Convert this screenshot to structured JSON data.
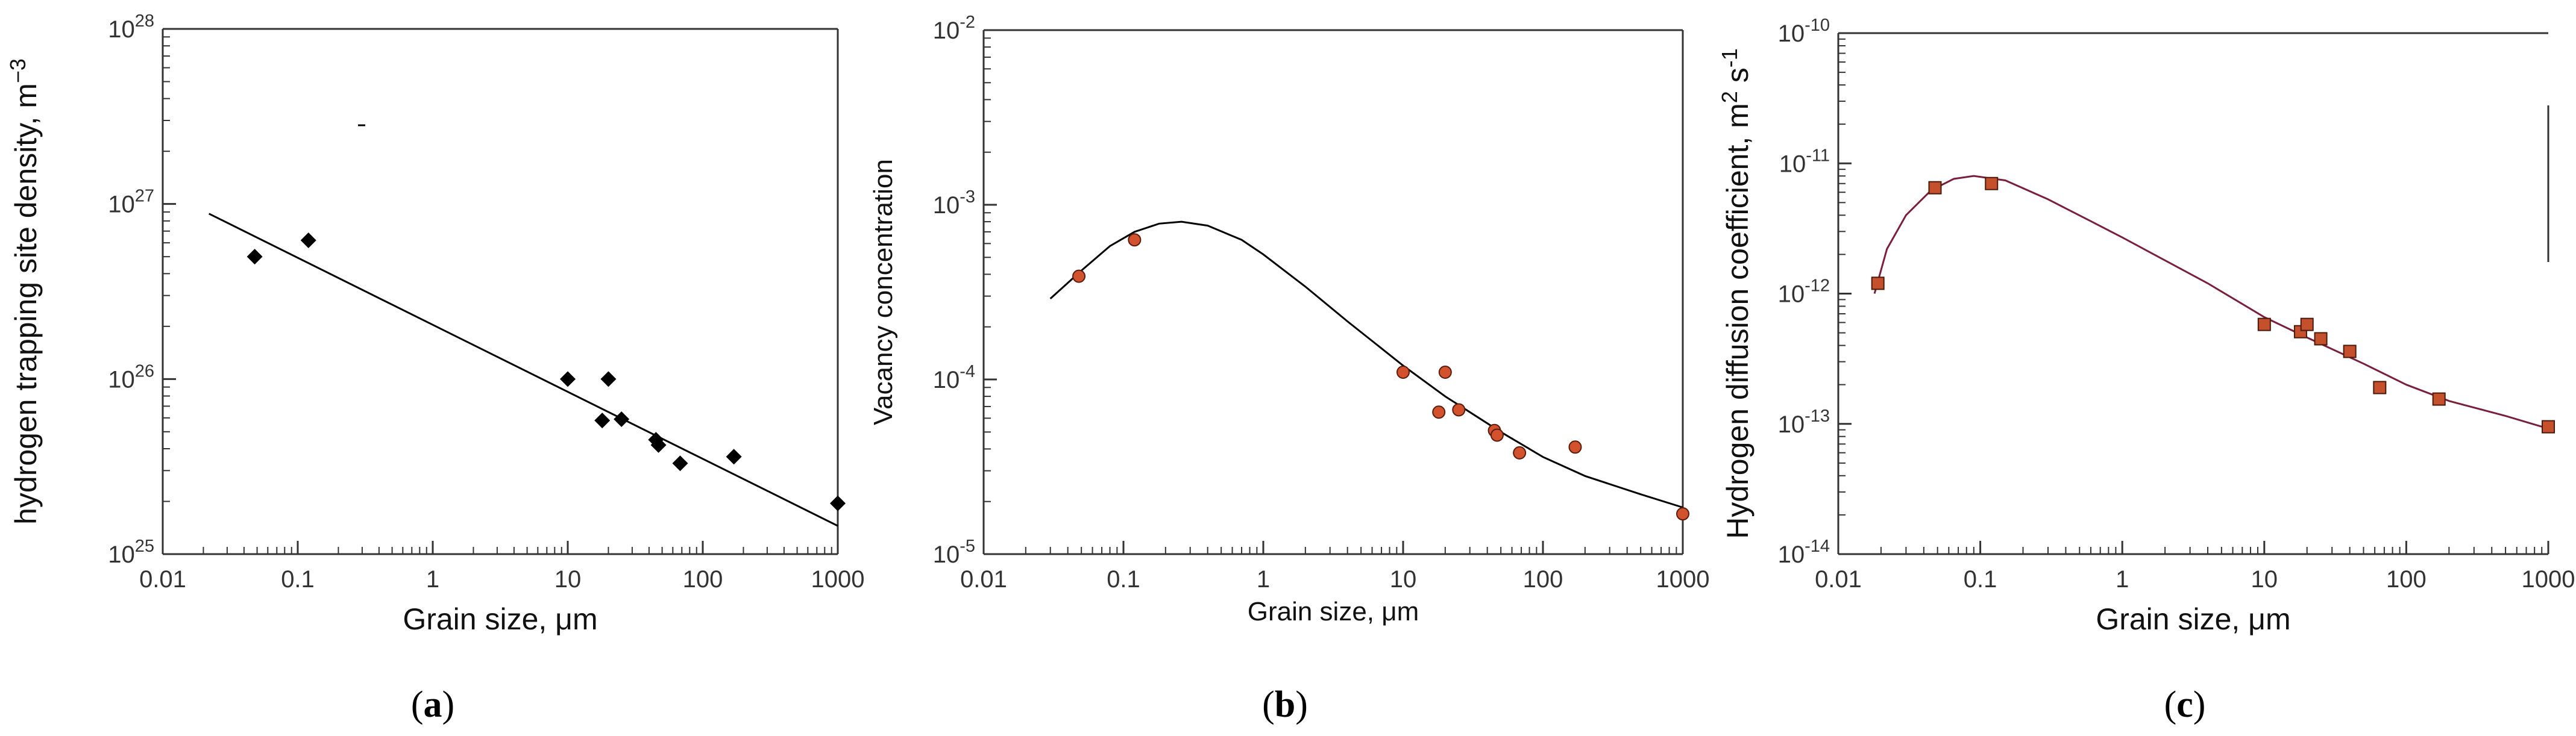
{
  "figure": {
    "panel_labels": [
      {
        "text": "(",
        "bold": "a",
        "close": ")"
      },
      {
        "text": "(",
        "bold": "b",
        "close": ")"
      },
      {
        "text": "(",
        "bold": "c",
        "close": ")"
      }
    ]
  },
  "chart_data": [
    {
      "type": "scatter",
      "panel": "a",
      "xscale": "log",
      "yscale": "log",
      "xlim": [
        0.01,
        1000
      ],
      "ylim": [
        1e+25,
        1e+28
      ],
      "xlabel": "Grain size, μm",
      "ylabel": "hydrogen trapping site density, m",
      "ylabel_sup": "−3",
      "xticks": [
        {
          "value": 0.01,
          "label": "0.01"
        },
        {
          "value": 0.1,
          "label": "0.1"
        },
        {
          "value": 1,
          "label": "1"
        },
        {
          "value": 10,
          "label": "10"
        },
        {
          "value": 100,
          "label": "100"
        },
        {
          "value": 1000,
          "label": "1000"
        }
      ],
      "yticks": [
        {
          "value": 1e+25,
          "base": "10",
          "exp": "25"
        },
        {
          "value": 1e+26,
          "base": "10",
          "exp": "26"
        },
        {
          "value": 1e+27,
          "base": "10",
          "exp": "27"
        },
        {
          "value": 1e+28,
          "base": "10",
          "exp": "28"
        }
      ],
      "marker": "diamond",
      "marker_color": "#000000",
      "points": [
        {
          "x": 0.048,
          "y": 5e+26
        },
        {
          "x": 0.12,
          "y": 6.2e+26
        },
        {
          "x": 10,
          "y": 1e+26
        },
        {
          "x": 18,
          "y": 5.8e+25
        },
        {
          "x": 20,
          "y": 1e+26
        },
        {
          "x": 25,
          "y": 5.9e+25
        },
        {
          "x": 45,
          "y": 4.5e+25
        },
        {
          "x": 47,
          "y": 4.2e+25
        },
        {
          "x": 68,
          "y": 3.3e+25
        },
        {
          "x": 170,
          "y": 3.6e+25
        },
        {
          "x": 1000,
          "y": 1.95e+25
        }
      ],
      "fit": {
        "kind": "line",
        "color": "#000000",
        "points": [
          {
            "x": 0.022,
            "y": 8.8e+26
          },
          {
            "x": 1000,
            "y": 1.45e+25
          }
        ]
      }
    },
    {
      "type": "scatter",
      "panel": "b",
      "xscale": "log",
      "yscale": "log",
      "xlim": [
        0.01,
        1000
      ],
      "ylim": [
        1e-05,
        0.01
      ],
      "xlabel": "Grain size, μm",
      "ylabel": "Vacancy concentration",
      "xticks": [
        {
          "value": 0.01,
          "label": "0.01"
        },
        {
          "value": 0.1,
          "label": "0.1"
        },
        {
          "value": 1,
          "label": "1"
        },
        {
          "value": 10,
          "label": "10"
        },
        {
          "value": 100,
          "label": "100"
        },
        {
          "value": 1000,
          "label": "1000"
        }
      ],
      "yticks": [
        {
          "value": 1e-05,
          "base": "10",
          "exp": "-5"
        },
        {
          "value": 0.0001,
          "base": "10",
          "exp": "-4"
        },
        {
          "value": 0.001,
          "base": "10",
          "exp": "-3"
        },
        {
          "value": 0.01,
          "base": "10",
          "exp": "-2"
        }
      ],
      "marker": "circle",
      "marker_color": "#d2522e",
      "points": [
        {
          "x": 0.048,
          "y": 0.00039
        },
        {
          "x": 0.12,
          "y": 0.00063
        },
        {
          "x": 10,
          "y": 0.00011
        },
        {
          "x": 18,
          "y": 6.5e-05
        },
        {
          "x": 20,
          "y": 0.00011
        },
        {
          "x": 25,
          "y": 6.7e-05
        },
        {
          "x": 45,
          "y": 5.1e-05
        },
        {
          "x": 47,
          "y": 4.8e-05
        },
        {
          "x": 68,
          "y": 3.8e-05
        },
        {
          "x": 170,
          "y": 4.1e-05
        },
        {
          "x": 1000,
          "y": 1.7e-05
        }
      ],
      "fit": {
        "kind": "curve",
        "color": "#000000",
        "points": [
          {
            "x": 0.03,
            "y": 0.00029
          },
          {
            "x": 0.05,
            "y": 0.00042
          },
          {
            "x": 0.08,
            "y": 0.00058
          },
          {
            "x": 0.12,
            "y": 0.0007
          },
          {
            "x": 0.18,
            "y": 0.00078
          },
          {
            "x": 0.26,
            "y": 0.0008
          },
          {
            "x": 0.4,
            "y": 0.00076
          },
          {
            "x": 0.7,
            "y": 0.00063
          },
          {
            "x": 1,
            "y": 0.00052
          },
          {
            "x": 2,
            "y": 0.00034
          },
          {
            "x": 4,
            "y": 0.000215
          },
          {
            "x": 10,
            "y": 0.00012
          },
          {
            "x": 20,
            "y": 8e-05
          },
          {
            "x": 50,
            "y": 5e-05
          },
          {
            "x": 100,
            "y": 3.6e-05
          },
          {
            "x": 200,
            "y": 2.8e-05
          },
          {
            "x": 500,
            "y": 2.2e-05
          },
          {
            "x": 1000,
            "y": 1.85e-05
          }
        ]
      }
    },
    {
      "type": "scatter",
      "panel": "c",
      "xscale": "log",
      "yscale": "log",
      "xlim": [
        0.01,
        1000
      ],
      "ylim": [
        1e-14,
        1e-10
      ],
      "xlabel": "Grain size, μm",
      "ylabel": "Hydrogen diffusion coefficient, m",
      "ylabel_sup": "2",
      "ylabel_mid": " s",
      "ylabel_sup2": "-1",
      "xticks": [
        {
          "value": 0.01,
          "label": "0.01"
        },
        {
          "value": 0.1,
          "label": "0.1"
        },
        {
          "value": 1,
          "label": "1"
        },
        {
          "value": 10,
          "label": "10"
        },
        {
          "value": 100,
          "label": "100"
        },
        {
          "value": 1000,
          "label": "1000"
        }
      ],
      "yticks": [
        {
          "value": 1e-14,
          "base": "10",
          "exp": "-14"
        },
        {
          "value": 1e-13,
          "base": "10",
          "exp": "-13"
        },
        {
          "value": 1e-12,
          "base": "10",
          "exp": "-12"
        },
        {
          "value": 1e-11,
          "base": "10",
          "exp": "-11"
        },
        {
          "value": 1e-10,
          "base": "10",
          "exp": "-10"
        }
      ],
      "marker": "square",
      "marker_color": "#c4502c",
      "points": [
        {
          "x": 0.019,
          "y": 1.2e-12
        },
        {
          "x": 0.048,
          "y": 6.5e-12
        },
        {
          "x": 0.12,
          "y": 7e-12
        },
        {
          "x": 10,
          "y": 5.8e-13
        },
        {
          "x": 18,
          "y": 5.1e-13
        },
        {
          "x": 20,
          "y": 5.8e-13
        },
        {
          "x": 25,
          "y": 4.5e-13
        },
        {
          "x": 40,
          "y": 3.6e-13
        },
        {
          "x": 65,
          "y": 1.9e-13
        },
        {
          "x": 170,
          "y": 1.55e-13
        },
        {
          "x": 1000,
          "y": 9.5e-14
        }
      ],
      "fit": {
        "kind": "curve",
        "color": "#7a1f3a",
        "points": [
          {
            "x": 0.018,
            "y": 1e-12
          },
          {
            "x": 0.022,
            "y": 2.2e-12
          },
          {
            "x": 0.03,
            "y": 4e-12
          },
          {
            "x": 0.045,
            "y": 6.2e-12
          },
          {
            "x": 0.065,
            "y": 7.6e-12
          },
          {
            "x": 0.09,
            "y": 8e-12
          },
          {
            "x": 0.15,
            "y": 7.4e-12
          },
          {
            "x": 0.3,
            "y": 5.3e-12
          },
          {
            "x": 0.6,
            "y": 3.6e-12
          },
          {
            "x": 1,
            "y": 2.7e-12
          },
          {
            "x": 2,
            "y": 1.8e-12
          },
          {
            "x": 4,
            "y": 1.2e-12
          },
          {
            "x": 10,
            "y": 6.6e-13
          },
          {
            "x": 20,
            "y": 4.6e-13
          },
          {
            "x": 50,
            "y": 2.9e-13
          },
          {
            "x": 100,
            "y": 2e-13
          },
          {
            "x": 200,
            "y": 1.5e-13
          },
          {
            "x": 500,
            "y": 1.15e-13
          },
          {
            "x": 1000,
            "y": 9.2e-14
          }
        ]
      }
    }
  ]
}
